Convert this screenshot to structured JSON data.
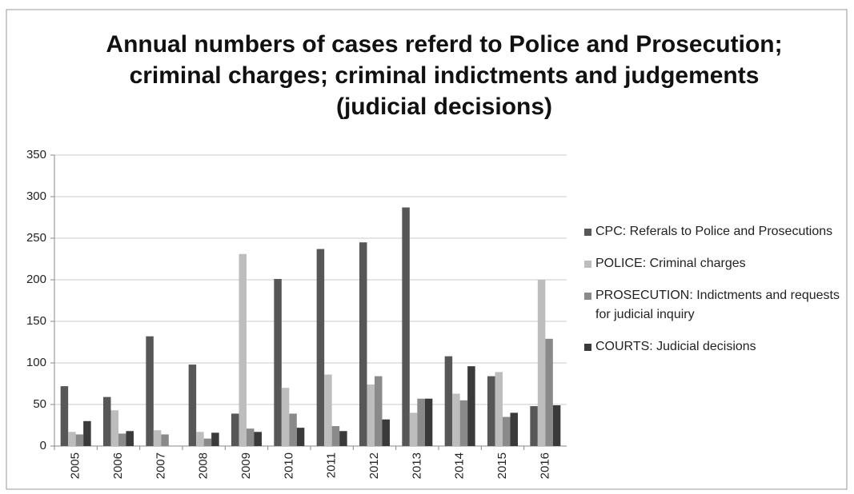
{
  "chart_data": {
    "type": "bar",
    "title": "Annual numbers of cases referd to Police and Prosecution; criminal charges; criminal indictments and judgements (judicial decisions)",
    "categories": [
      "2005",
      "2006",
      "2007",
      "2008",
      "2009",
      "2010",
      "2011",
      "2012",
      "2013",
      "2014",
      "2015",
      "2016"
    ],
    "series": [
      {
        "name": "CPC: Referals to Police and Prosecutions",
        "color": "#575757",
        "values": [
          72,
          59,
          132,
          98,
          39,
          201,
          237,
          245,
          287,
          108,
          84,
          48
        ]
      },
      {
        "name": "POLICE: Criminal charges",
        "color": "#bdbdbd",
        "values": [
          17,
          43,
          19,
          17,
          231,
          70,
          86,
          74,
          40,
          63,
          89,
          200
        ]
      },
      {
        "name": "PROSECUTION: Indictments and requests for judicial inquiry",
        "color": "#8a8a8a",
        "values": [
          14,
          15,
          14,
          9,
          21,
          39,
          24,
          84,
          57,
          55,
          35,
          129
        ]
      },
      {
        "name": "COURTS: Judicial decisions",
        "color": "#3a3a3a",
        "values": [
          30,
          18,
          0,
          16,
          17,
          22,
          18,
          32,
          57,
          96,
          40,
          49
        ]
      }
    ],
    "ylim": [
      0,
      350
    ],
    "yticks": [
      0,
      50,
      100,
      150,
      200,
      250,
      300,
      350
    ],
    "grid": true,
    "legend": "right"
  }
}
